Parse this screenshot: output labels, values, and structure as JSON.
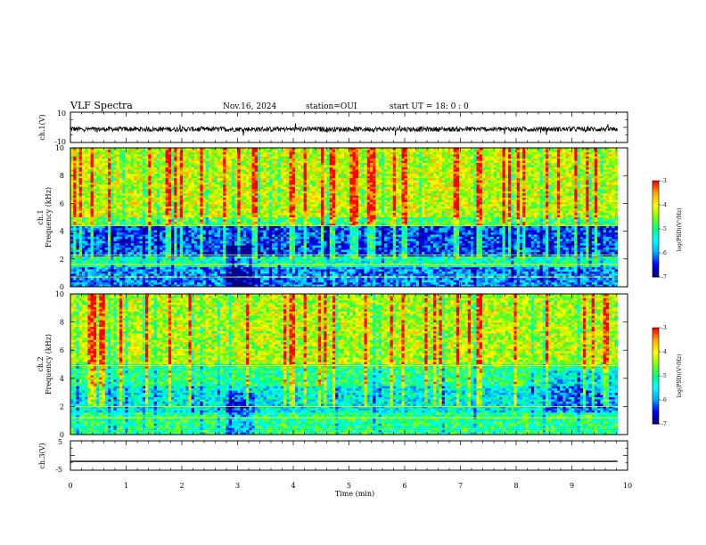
{
  "header": {
    "title": "VLF Spectra",
    "date": "Nov.16, 2024",
    "station": "station=OUI",
    "start": "start UT = 18: 0 : 0"
  },
  "chart_data": [
    {
      "type": "line",
      "panel": "waveform-ch1",
      "ylabel": "ch.1(V)",
      "ytick_labels": [
        "10",
        "-10"
      ],
      "ylim": [
        -10,
        10
      ],
      "description_values": {
        "baseline": -1.2,
        "amplitude_range": [
          -4,
          4
        ]
      }
    },
    {
      "type": "heatmap",
      "panel": "spectrogram-ch1",
      "ylabel": "Frequency (kHz)",
      "ylabel_channel": "ch.1",
      "ytick_labels": [
        "0",
        "2",
        "4",
        "6",
        "8",
        "10"
      ],
      "ylim": [
        0,
        10
      ],
      "colorbar": {
        "label": "log(PSD)(V²/Hz)",
        "ticks": [
          "-3",
          "-4",
          "-5",
          "-6",
          "-7"
        ],
        "range": [
          -7,
          -3
        ]
      }
    },
    {
      "type": "heatmap",
      "panel": "spectrogram-ch2",
      "ylabel": "Frequency (kHz)",
      "ylabel_channel": "ch.2",
      "ytick_labels": [
        "0",
        "2",
        "4",
        "6",
        "8",
        "10"
      ],
      "ylim": [
        0,
        10
      ],
      "colorbar": {
        "label": "log(PSD)(V²/Hz)",
        "ticks": [
          "-3",
          "-4",
          "-5",
          "-6",
          "-7"
        ],
        "range": [
          -7,
          -3
        ]
      }
    },
    {
      "type": "line",
      "panel": "waveform-ch3",
      "ylabel": "ch.3(V)",
      "ytick_labels": [
        "5",
        "-5"
      ],
      "ylim": [
        -5,
        5
      ],
      "values": [
        -2,
        -2
      ]
    }
  ],
  "x_axis": {
    "label": "Time (min)",
    "ticks": [
      "0",
      "1",
      "2",
      "3",
      "4",
      "5",
      "6",
      "7",
      "8",
      "9",
      "10"
    ],
    "xlim": [
      0,
      10
    ],
    "data_end": 9.82
  },
  "colors": {
    "cmap": [
      "#00007f",
      "#0000ff",
      "#00aaff",
      "#00ffff",
      "#00ff80",
      "#80ff00",
      "#ffff00",
      "#ffaa00",
      "#ff0000",
      "#ffffff"
    ]
  }
}
